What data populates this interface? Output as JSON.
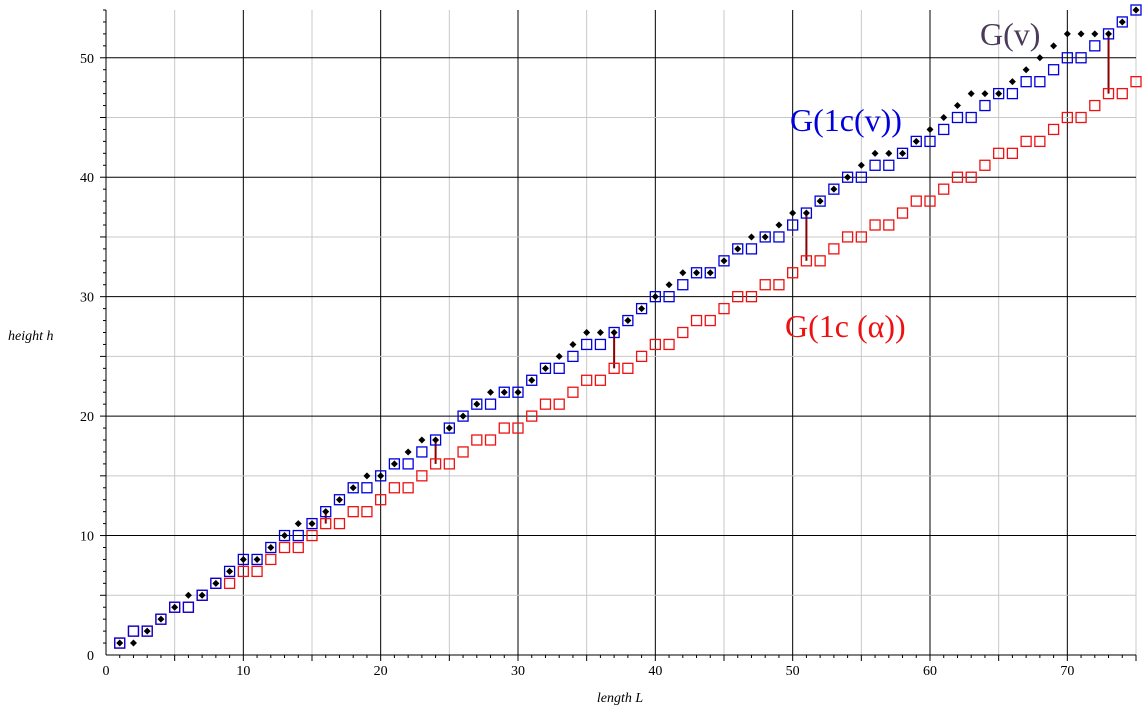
{
  "chart_data": {
    "type": "scatter",
    "xlabel": "length L",
    "ylabel": "height h",
    "xlim": [
      0,
      75
    ],
    "ylim": [
      0,
      54
    ],
    "x_ticks": [
      "0",
      "10",
      "20",
      "30",
      "40",
      "50",
      "60",
      "70"
    ],
    "y_ticks": [
      "0",
      "10",
      "20",
      "30",
      "40",
      "50"
    ],
    "grid": true,
    "series": [
      {
        "name": "G(v)",
        "marker": "diamond",
        "color": "#000000",
        "label_color": "#4a3a5c",
        "x": [
          1,
          2,
          3,
          4,
          5,
          6,
          7,
          8,
          9,
          10,
          11,
          12,
          13,
          14,
          15,
          16,
          17,
          18,
          19,
          20,
          21,
          22,
          23,
          24,
          25,
          26,
          27,
          28,
          29,
          30,
          31,
          32,
          33,
          34,
          35,
          36,
          37,
          38,
          39,
          40,
          41,
          42,
          43,
          44,
          45,
          46,
          47,
          48,
          49,
          50,
          51,
          52,
          53,
          54,
          55,
          56,
          57,
          58,
          59,
          60,
          61,
          62,
          63,
          64,
          65,
          66,
          67,
          68,
          69,
          70,
          71,
          72,
          73,
          74,
          75
        ],
        "y": [
          1,
          1,
          2,
          3,
          4,
          5,
          5,
          6,
          7,
          8,
          8,
          9,
          10,
          11,
          11,
          12,
          13,
          14,
          15,
          15,
          16,
          17,
          18,
          18,
          19,
          20,
          21,
          22,
          22,
          22,
          23,
          24,
          25,
          26,
          27,
          27,
          27,
          28,
          29,
          30,
          31,
          32,
          32,
          32,
          33,
          34,
          35,
          35,
          36,
          37,
          37,
          38,
          39,
          40,
          41,
          42,
          42,
          42,
          43,
          44,
          45,
          46,
          47,
          47,
          47,
          48,
          49,
          50,
          51,
          52,
          52,
          52,
          52,
          53,
          54
        ]
      },
      {
        "name": "G(1c(v))",
        "marker": "square",
        "color": "#0000dd",
        "x": [
          1,
          2,
          3,
          4,
          5,
          6,
          7,
          8,
          9,
          10,
          11,
          12,
          13,
          14,
          15,
          16,
          17,
          18,
          19,
          20,
          21,
          22,
          23,
          24,
          25,
          26,
          27,
          28,
          29,
          30,
          31,
          32,
          33,
          34,
          35,
          36,
          37,
          38,
          39,
          40,
          41,
          42,
          43,
          44,
          45,
          46,
          47,
          48,
          49,
          50,
          51,
          52,
          53,
          54,
          55,
          56,
          57,
          58,
          59,
          60,
          61,
          62,
          63,
          64,
          65,
          66,
          67,
          68,
          69,
          70,
          71,
          72,
          73,
          74,
          75
        ],
        "y": [
          1,
          2,
          2,
          3,
          4,
          4,
          5,
          6,
          7,
          8,
          8,
          9,
          10,
          10,
          11,
          12,
          13,
          14,
          14,
          15,
          16,
          16,
          17,
          18,
          19,
          20,
          21,
          21,
          22,
          22,
          23,
          24,
          24,
          25,
          26,
          26,
          27,
          28,
          29,
          30,
          30,
          31,
          32,
          32,
          33,
          34,
          34,
          35,
          35,
          36,
          37,
          38,
          39,
          40,
          40,
          41,
          41,
          42,
          43,
          43,
          44,
          45,
          45,
          46,
          47,
          47,
          48,
          48,
          49,
          50,
          50,
          51,
          52,
          53,
          54
        ]
      },
      {
        "name": "G(1c (α))",
        "marker": "square",
        "color": "#ee1111",
        "x": [
          1,
          2,
          3,
          4,
          5,
          6,
          7,
          8,
          9,
          10,
          11,
          12,
          13,
          14,
          15,
          16,
          17,
          18,
          19,
          20,
          21,
          22,
          23,
          24,
          25,
          26,
          27,
          28,
          29,
          30,
          31,
          32,
          33,
          34,
          35,
          36,
          37,
          38,
          39,
          40,
          41,
          42,
          43,
          44,
          45,
          46,
          47,
          48,
          49,
          50,
          51,
          52,
          53,
          54,
          55,
          56,
          57,
          58,
          59,
          60,
          61,
          62,
          63,
          64,
          65,
          66,
          67,
          68,
          69,
          70,
          71,
          72,
          73,
          74,
          75
        ],
        "y": [
          1,
          2,
          2,
          3,
          4,
          4,
          5,
          6,
          6,
          7,
          7,
          8,
          9,
          9,
          10,
          11,
          11,
          12,
          12,
          13,
          14,
          14,
          15,
          16,
          16,
          17,
          18,
          18,
          19,
          19,
          20,
          21,
          21,
          22,
          23,
          23,
          24,
          24,
          25,
          26,
          26,
          27,
          28,
          28,
          29,
          30,
          30,
          31,
          31,
          32,
          33,
          33,
          34,
          35,
          35,
          36,
          36,
          37,
          38,
          38,
          39,
          40,
          40,
          41,
          42,
          42,
          43,
          43,
          44,
          45,
          45,
          46,
          47,
          47,
          48
        ]
      }
    ],
    "gap_lines": {
      "color": "#8b0000",
      "x": [
        16,
        24,
        37,
        51,
        73
      ]
    }
  }
}
